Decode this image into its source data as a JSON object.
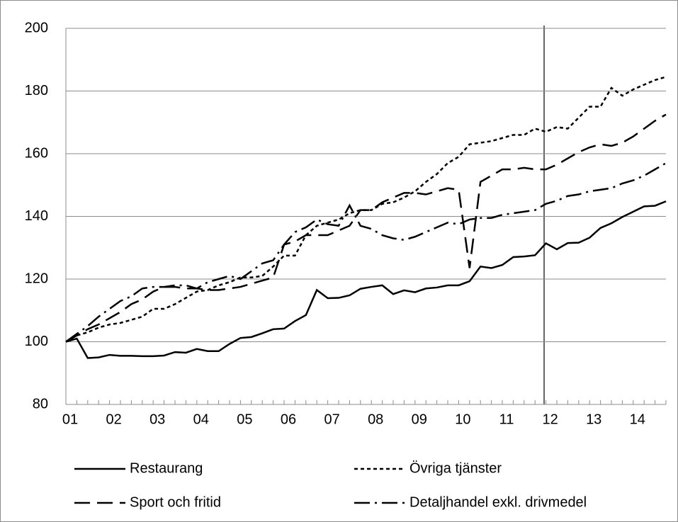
{
  "chart_data": {
    "type": "line",
    "categories": [
      "01",
      null,
      null,
      null,
      "02",
      null,
      null,
      null,
      "03",
      null,
      null,
      null,
      "04",
      null,
      null,
      null,
      "05",
      null,
      null,
      null,
      "06",
      null,
      null,
      null,
      "07",
      null,
      null,
      null,
      "08",
      null,
      null,
      null,
      "09",
      null,
      null,
      null,
      "10",
      null,
      null,
      null,
      "11",
      null,
      null,
      null,
      "12",
      null,
      null,
      null,
      "13",
      null,
      null,
      null,
      "14",
      null,
      null,
      null
    ],
    "ylim": [
      80,
      200
    ],
    "yticks": [
      80,
      100,
      120,
      140,
      160,
      180,
      200
    ],
    "grid": true,
    "series": [
      {
        "name": "Restaurang",
        "color": "#000000",
        "dash": "solid",
        "values": [
          100,
          101,
          94.8,
          95,
          95.8,
          95.5,
          95.5,
          95.4,
          95.4,
          95.6,
          96.7,
          96.5,
          97.7,
          97,
          97,
          99.3,
          101.2,
          101.5,
          102.7,
          104,
          104.2,
          106.6,
          108.5,
          116.5,
          113.9,
          114,
          114.8,
          116.9,
          117.5,
          118,
          115.2,
          116.4,
          115.8,
          117,
          117.3,
          118,
          118,
          119.3,
          124,
          123.5,
          124.5,
          127,
          127.2,
          127.6,
          131.4,
          129.5,
          131.5,
          131.6,
          133.2,
          136.3,
          137.8,
          139.8,
          141.5,
          143.2,
          143.4,
          144.8
        ]
      },
      {
        "name": "Övriga tjänster",
        "color": "#000000",
        "dash": "dot",
        "values": [
          100,
          102,
          103,
          104.5,
          105.5,
          106,
          107,
          108,
          110.5,
          110.5,
          112,
          114,
          116,
          116.5,
          118,
          119,
          120.5,
          120.5,
          121,
          124,
          127.5,
          127.5,
          134,
          137,
          138,
          139,
          141,
          142,
          142,
          144,
          144.5,
          146,
          148,
          151,
          153.5,
          157,
          159,
          163,
          163.5,
          164,
          165,
          166,
          166,
          168,
          167,
          168.5,
          168,
          171.5,
          175,
          175,
          181,
          178.5,
          180.5,
          182,
          183.5,
          184.5
        ]
      },
      {
        "name": "Sport och fritid",
        "color": "#000000",
        "dash": "dash",
        "values": [
          100,
          102,
          104,
          105.5,
          107.5,
          109.5,
          112,
          113.5,
          116,
          117.5,
          117.5,
          117,
          117,
          116.5,
          116.5,
          117,
          117.5,
          118.5,
          119.5,
          120.5,
          131,
          132,
          134,
          134,
          134,
          135.5,
          137,
          142,
          142,
          144.5,
          146,
          147.5,
          147.5,
          147,
          148,
          149,
          148.5,
          123.5,
          151,
          153,
          155,
          155,
          155.5,
          155,
          155,
          156.5,
          158.5,
          160.5,
          162,
          163,
          162.5,
          163.5,
          165.5,
          168,
          170.5,
          172.5
        ]
      },
      {
        "name": "Detaljhandel exkl. drivmedel",
        "color": "#000000",
        "dash": "dashdot",
        "values": [
          100,
          102.5,
          105,
          108,
          110.5,
          113,
          114.5,
          117,
          117.5,
          117.5,
          118,
          118,
          117,
          119,
          120,
          121,
          120,
          122.5,
          125,
          126,
          131,
          135,
          136.5,
          139,
          137.5,
          137,
          143.5,
          137,
          136,
          134,
          133,
          132.5,
          133.5,
          135,
          136.5,
          138,
          137.5,
          139,
          139.5,
          139.5,
          140.5,
          141,
          141.5,
          142,
          144,
          145,
          146.5,
          147,
          148,
          148.5,
          149,
          150.5,
          151.5,
          153,
          155,
          157
        ]
      }
    ]
  }
}
